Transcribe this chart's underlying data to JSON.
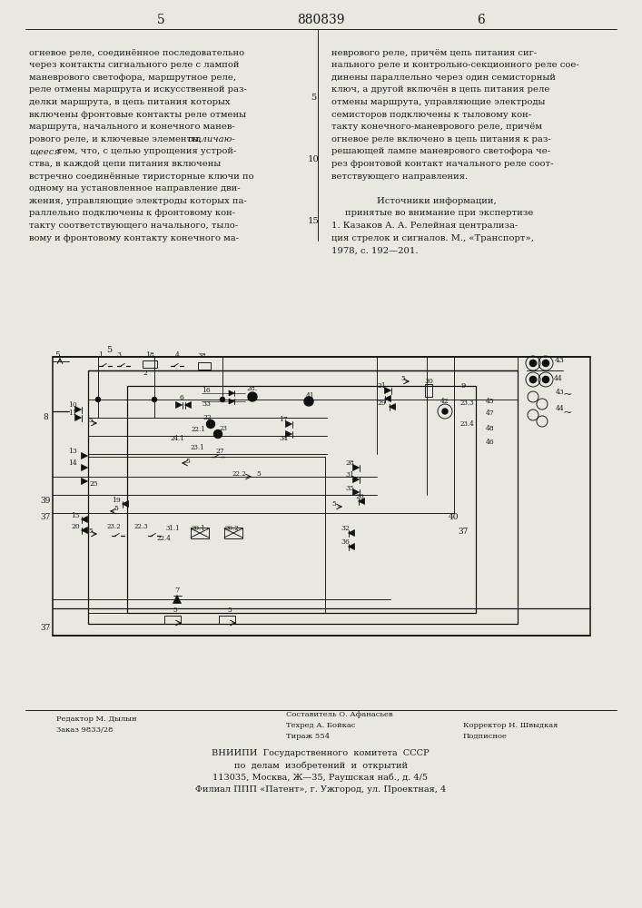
{
  "page_bg": "#e8e8e0",
  "text_color": "#1a1a1a",
  "page_number_left": "5",
  "page_number_center": "880839",
  "page_number_right": "6",
  "col_left_text": [
    "огневое реле, соединённое последовательно",
    "через контакты сигнального реле с лампой",
    "маневрового светофора, маршрутное реле,",
    "реле отмены маршрута и искусственной раз-",
    "делки маршрута, в цепь питания которых",
    "включены фронтовые контакты реле отмены",
    "маршрута, начального и конечного манев-",
    "рового реле, и ключевые элементы, ",
    "тем, что, с целью упрощения устрой-",
    "ства, в каждой цепи питания включены",
    "встречно соединённые тиристорные ключи по",
    "одному на установленное направление дви-",
    "жения, управляющие электроды которых па-",
    "раллельно подключены к фронтовому кон-",
    "такту соответствующего начального, тыло-",
    "вому и фронтовому контакту конечного ма-"
  ],
  "italic_parts": [
    [
      "отличаю-",
      7
    ],
    [
      "щееся",
      8
    ]
  ],
  "col_right_text_top": [
    "неврового реле, причём цепь питания сиг-",
    "нального реле и контрольно-секционного реле сое-",
    "динены параллельно через один семисторный",
    "ключ, а другой включён в цепь питания реле",
    "отмены маршрута, управляющие электроды",
    "семисторов подключены к тыловому кон-",
    "такту конечного-маневрового реле, причём",
    "огневое реле включено в цепь питания к раз-",
    "решающей лампе маневрового светофора че-",
    "рез фронтовой контакт начального реле соот-",
    "ветствующего направления."
  ],
  "references_header": "Источники информации,",
  "references_subheader": "принятые во внимание при экспертизе",
  "reference_1": "1. Казаков А. А. Релейная централиза-",
  "reference_2": "ция стрелок и сигналов. М., «Транспорт»,",
  "reference_3": "1978, с. 192—201.",
  "footer_left_line1": "Редактор М. Дылын",
  "footer_left_line2": "Заказ 9833/28",
  "footer_center_line1": "Составитель О. Афанасьев",
  "footer_center_line2": "Техред А. Бойкас",
  "footer_center_line3": "Тираж 554",
  "footer_right_line1": "Корректор Н. Швыдкая",
  "footer_right_line2": "Подписное",
  "footer_vniip_line1": "ВНИИПИ  Государственного  комитета  СССР",
  "footer_vniip_line2": "по  делам  изобретений  и  открытий",
  "footer_vniip_line3": "113035, Москва, Ж—35, Раушская наб., д. 4/5",
  "footer_vniip_line4": "Филиал ППП «Патент», г. Ужгород, ул. Проектная, 4"
}
